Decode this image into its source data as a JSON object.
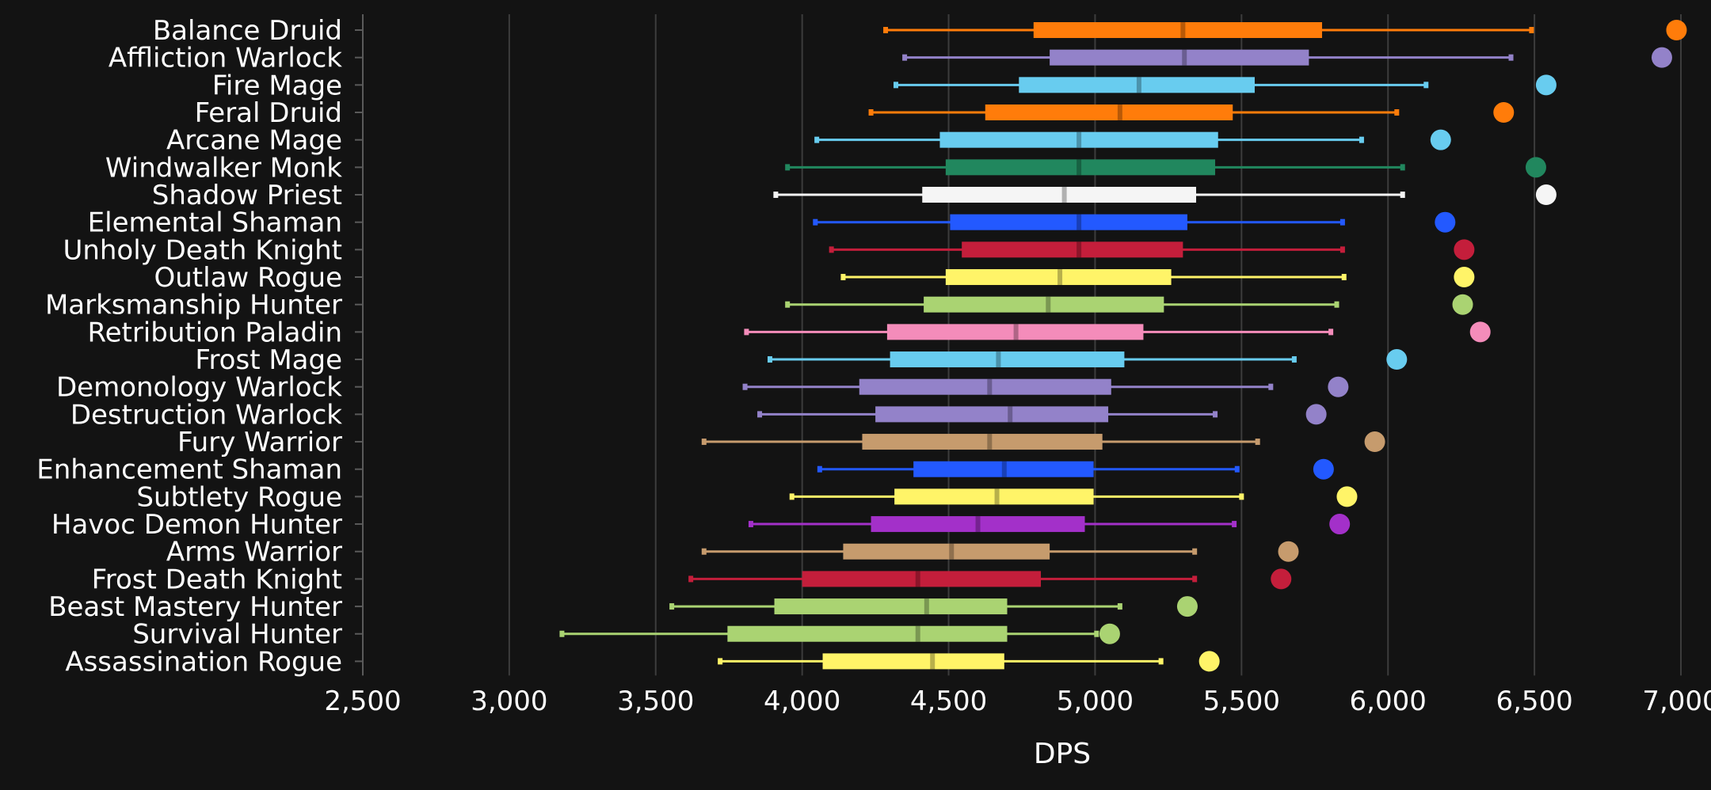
{
  "chart_data": {
    "type": "box",
    "orientation": "horizontal",
    "xlabel": "DPS",
    "xlim": [
      2500,
      7000
    ],
    "xticks": [
      2500,
      3000,
      3500,
      4000,
      4500,
      5000,
      5500,
      6000,
      6500,
      7000
    ],
    "xtick_labels": [
      "2,500",
      "3,000",
      "3,500",
      "4,000",
      "4,500",
      "5,000",
      "5,500",
      "6,000",
      "6,500",
      "7,000"
    ],
    "grid": "vertical",
    "series": [
      {
        "name": "Balance Druid",
        "color": "#ff7c0a",
        "min": 4285,
        "q1": 4790,
        "median": 5300,
        "q3": 5775,
        "max": 6490,
        "outlier": 6985
      },
      {
        "name": "Affliction Warlock",
        "color": "#9382c9",
        "min": 4350,
        "q1": 4845,
        "median": 5305,
        "q3": 5730,
        "max": 6420,
        "outlier": 6935
      },
      {
        "name": "Fire Mage",
        "color": "#68ccef",
        "min": 4320,
        "q1": 4740,
        "median": 5150,
        "q3": 5545,
        "max": 6130,
        "outlier": 6540
      },
      {
        "name": "Feral Druid",
        "color": "#ff7c0a",
        "min": 4235,
        "q1": 4625,
        "median": 5085,
        "q3": 5470,
        "max": 6030,
        "outlier": 6395
      },
      {
        "name": "Arcane Mage",
        "color": "#68ccef",
        "min": 4050,
        "q1": 4470,
        "median": 4945,
        "q3": 5420,
        "max": 5910,
        "outlier": 6180
      },
      {
        "name": "Windwalker Monk",
        "color": "#21875e",
        "min": 3950,
        "q1": 4490,
        "median": 4945,
        "q3": 5410,
        "max": 6050,
        "outlier": 6505
      },
      {
        "name": "Shadow Priest",
        "color": "#f5f5f5",
        "min": 3910,
        "q1": 4410,
        "median": 4895,
        "q3": 5345,
        "max": 6050,
        "outlier": 6540
      },
      {
        "name": "Elemental Shaman",
        "color": "#2359ff",
        "min": 4045,
        "q1": 4505,
        "median": 4945,
        "q3": 5315,
        "max": 5845,
        "outlier": 6195
      },
      {
        "name": "Unholy Death Knight",
        "color": "#c41e3b",
        "min": 4100,
        "q1": 4545,
        "median": 4945,
        "q3": 5300,
        "max": 5845,
        "outlier": 6260
      },
      {
        "name": "Outlaw Rogue",
        "color": "#fff468",
        "min": 4140,
        "q1": 4490,
        "median": 4880,
        "q3": 5260,
        "max": 5850,
        "outlier": 6260
      },
      {
        "name": "Marksmanship Hunter",
        "color": "#aad372",
        "min": 3950,
        "q1": 4415,
        "median": 4840,
        "q3": 5235,
        "max": 5825,
        "outlier": 6255
      },
      {
        "name": "Retribution Paladin",
        "color": "#f48cba",
        "min": 3810,
        "q1": 4290,
        "median": 4730,
        "q3": 5165,
        "max": 5805,
        "outlier": 6315
      },
      {
        "name": "Frost Mage",
        "color": "#68ccef",
        "min": 3890,
        "q1": 4300,
        "median": 4670,
        "q3": 5100,
        "max": 5680,
        "outlier": 6030
      },
      {
        "name": "Demonology Warlock",
        "color": "#9382c9",
        "min": 3805,
        "q1": 4195,
        "median": 4640,
        "q3": 5055,
        "max": 5600,
        "outlier": 5830
      },
      {
        "name": "Destruction Warlock",
        "color": "#9382c9",
        "min": 3855,
        "q1": 4250,
        "median": 4710,
        "q3": 5045,
        "max": 5410,
        "outlier": 5755
      },
      {
        "name": "Fury Warrior",
        "color": "#c69b6d",
        "min": 3665,
        "q1": 4205,
        "median": 4640,
        "q3": 5025,
        "max": 5555,
        "outlier": 5955
      },
      {
        "name": "Enhancement Shaman",
        "color": "#2359ff",
        "min": 4060,
        "q1": 4380,
        "median": 4690,
        "q3": 4995,
        "max": 5485,
        "outlier": 5780
      },
      {
        "name": "Subtlety Rogue",
        "color": "#fff468",
        "min": 3965,
        "q1": 4315,
        "median": 4665,
        "q3": 4995,
        "max": 5500,
        "outlier": 5860
      },
      {
        "name": "Havoc Demon Hunter",
        "color": "#a330c9",
        "min": 3825,
        "q1": 4235,
        "median": 4600,
        "q3": 4965,
        "max": 5475,
        "outlier": 5835
      },
      {
        "name": "Arms Warrior",
        "color": "#c69b6d",
        "min": 3665,
        "q1": 4140,
        "median": 4510,
        "q3": 4845,
        "max": 5340,
        "outlier": 5660
      },
      {
        "name": "Frost Death Knight",
        "color": "#c41e3b",
        "min": 3620,
        "q1": 4000,
        "median": 4395,
        "q3": 4815,
        "max": 5340,
        "outlier": 5635
      },
      {
        "name": "Beast Mastery Hunter",
        "color": "#aad372",
        "min": 3555,
        "q1": 3905,
        "median": 4425,
        "q3": 4700,
        "max": 5085,
        "outlier": 5315
      },
      {
        "name": "Survival Hunter",
        "color": "#aad372",
        "min": 3180,
        "q1": 3745,
        "median": 4395,
        "q3": 4700,
        "max": 5005,
        "outlier": 5050
      },
      {
        "name": "Assassination Rogue",
        "color": "#fff468",
        "min": 3720,
        "q1": 4070,
        "median": 4445,
        "q3": 4690,
        "max": 5225,
        "outlier": 5390
      }
    ]
  }
}
